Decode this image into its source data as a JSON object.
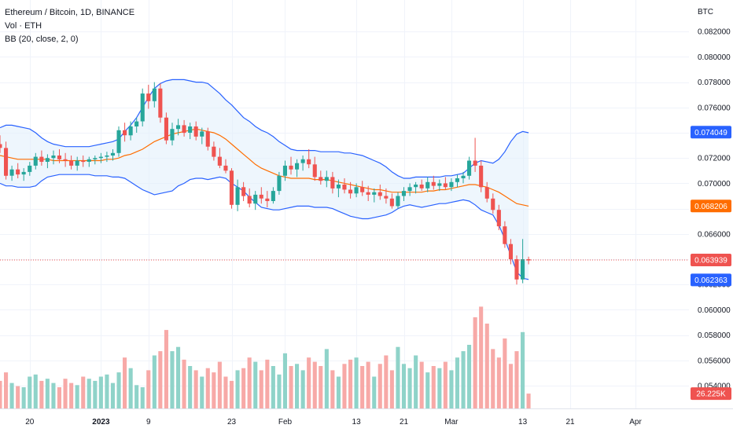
{
  "legend": {
    "symbol_line": "Ethereum / Bitcoin, 1D, BINANCE",
    "volume_line": "Vol · ETH",
    "bb_line": "BB (20, close, 2, 0)"
  },
  "colors": {
    "up": "#26a69a",
    "down": "#ef5350",
    "vol_up": "#8fd3c9",
    "vol_down": "#f7a9a7",
    "bb_band": "#2962ff",
    "bb_basis": "#ff6d00",
    "bb_fill": "#e3f0fc",
    "last_price": "#ef5350",
    "grid": "#f0f3fa"
  },
  "chart_data": {
    "type": "candlestick",
    "pair": "Ethereum / Bitcoin",
    "interval": "1D",
    "exchange": "BINANCE",
    "price_axis": {
      "unit": "BTC",
      "range": [
        0.0522,
        0.0845
      ],
      "ticks": [
        "0.082000",
        "0.080000",
        "0.078000",
        "0.076000",
        "0.074000",
        "0.072000",
        "0.070000",
        "0.068000",
        "0.066000",
        "0.064000",
        "0.062000",
        "0.060000",
        "0.058000",
        "0.056000",
        "0.054000"
      ],
      "tick_values": [
        0.082,
        0.08,
        0.078,
        0.076,
        0.074,
        0.072,
        0.07,
        0.068,
        0.066,
        0.064,
        0.062,
        0.06,
        0.058,
        0.056,
        0.054
      ]
    },
    "time_axis": {
      "range": [
        "2022-12-15",
        "2023-04-10"
      ],
      "ticks": [
        {
          "label": "20",
          "date": "2022-12-20"
        },
        {
          "label": "2023",
          "date": "2023-01-01"
        },
        {
          "label": "9",
          "date": "2023-01-09"
        },
        {
          "label": "23",
          "date": "2023-01-23"
        },
        {
          "label": "Feb",
          "date": "2023-02-01"
        },
        {
          "label": "13",
          "date": "2023-02-13"
        },
        {
          "label": "21",
          "date": "2023-02-21"
        },
        {
          "label": "Mar",
          "date": "2023-03-01"
        },
        {
          "label": "13",
          "date": "2023-03-13"
        },
        {
          "label": "21",
          "date": "2023-03-21"
        },
        {
          "label": "Apr",
          "date": "2023-04-01"
        }
      ]
    },
    "price_labels": [
      {
        "text": "0.074049",
        "value": 0.074049,
        "kind": "bb-upper"
      },
      {
        "text": "0.068206",
        "value": 0.068206,
        "kind": "bb-basis"
      },
      {
        "text": "0.063939",
        "value": 0.063939,
        "kind": "last-price"
      },
      {
        "text": "0.062363",
        "value": 0.062363,
        "kind": "bb-lower"
      }
    ],
    "volume_label": "26.225K",
    "volume_scale_max": 100,
    "last_price": 0.063939,
    "start_date": "2022-12-15",
    "candles": [
      [
        0.0731,
        0.0738,
        0.0724,
        0.0728
      ],
      [
        0.0728,
        0.0733,
        0.0703,
        0.0706
      ],
      [
        0.0706,
        0.0714,
        0.0702,
        0.0711
      ],
      [
        0.0711,
        0.0716,
        0.0704,
        0.0707
      ],
      [
        0.0707,
        0.0712,
        0.0702,
        0.0709
      ],
      [
        0.0709,
        0.0717,
        0.0706,
        0.0714
      ],
      [
        0.0714,
        0.0724,
        0.0711,
        0.0721
      ],
      [
        0.0721,
        0.0726,
        0.0714,
        0.0717
      ],
      [
        0.0717,
        0.0723,
        0.0712,
        0.072
      ],
      [
        0.072,
        0.0726,
        0.0715,
        0.0722
      ],
      [
        0.0722,
        0.0727,
        0.0716,
        0.0719
      ],
      [
        0.0719,
        0.0724,
        0.0713,
        0.0718
      ],
      [
        0.0718,
        0.0722,
        0.0711,
        0.0714
      ],
      [
        0.0714,
        0.0721,
        0.071,
        0.0718
      ],
      [
        0.0718,
        0.0722,
        0.0713,
        0.0717
      ],
      [
        0.0717,
        0.0721,
        0.0713,
        0.0719
      ],
      [
        0.0719,
        0.0722,
        0.0715,
        0.072
      ],
      [
        0.072,
        0.0724,
        0.0716,
        0.0721
      ],
      [
        0.0721,
        0.0725,
        0.0717,
        0.0722
      ],
      [
        0.0722,
        0.0727,
        0.0718,
        0.0724
      ],
      [
        0.0724,
        0.0745,
        0.0721,
        0.0742
      ],
      [
        0.0742,
        0.0748,
        0.0733,
        0.0738
      ],
      [
        0.0738,
        0.0749,
        0.0734,
        0.0745
      ],
      [
        0.0745,
        0.0752,
        0.074,
        0.0749
      ],
      [
        0.0749,
        0.0775,
        0.0745,
        0.0771
      ],
      [
        0.0771,
        0.0778,
        0.0759,
        0.0765
      ],
      [
        0.0765,
        0.078,
        0.076,
        0.0775
      ],
      [
        0.0775,
        0.0779,
        0.0748,
        0.0752
      ],
      [
        0.0752,
        0.0756,
        0.0731,
        0.0734
      ],
      [
        0.0734,
        0.0748,
        0.073,
        0.0743
      ],
      [
        0.0743,
        0.0751,
        0.0738,
        0.0746
      ],
      [
        0.0746,
        0.075,
        0.0737,
        0.074
      ],
      [
        0.074,
        0.0748,
        0.0735,
        0.0745
      ],
      [
        0.0745,
        0.0749,
        0.0734,
        0.0737
      ],
      [
        0.0737,
        0.0744,
        0.0731,
        0.0741
      ],
      [
        0.0741,
        0.0744,
        0.0726,
        0.0729
      ],
      [
        0.0729,
        0.0733,
        0.0718,
        0.0721
      ],
      [
        0.0721,
        0.0728,
        0.0712,
        0.0714
      ],
      [
        0.0714,
        0.0719,
        0.0708,
        0.071
      ],
      [
        0.071,
        0.0712,
        0.068,
        0.0683
      ],
      [
        0.0683,
        0.0703,
        0.0678,
        0.0697
      ],
      [
        0.0697,
        0.0701,
        0.0686,
        0.069
      ],
      [
        0.069,
        0.0696,
        0.0681,
        0.0684
      ],
      [
        0.0684,
        0.0694,
        0.0679,
        0.0691
      ],
      [
        0.0691,
        0.0697,
        0.0684,
        0.0688
      ],
      [
        0.0688,
        0.0694,
        0.0681,
        0.0686
      ],
      [
        0.0686,
        0.0697,
        0.0684,
        0.0694
      ],
      [
        0.0694,
        0.0709,
        0.0691,
        0.0706
      ],
      [
        0.0706,
        0.0718,
        0.0702,
        0.0714
      ],
      [
        0.0714,
        0.0721,
        0.0707,
        0.0711
      ],
      [
        0.0711,
        0.0719,
        0.0705,
        0.0716
      ],
      [
        0.0716,
        0.0722,
        0.071,
        0.0719
      ],
      [
        0.0719,
        0.0727,
        0.0712,
        0.0715
      ],
      [
        0.0715,
        0.0721,
        0.0702,
        0.0705
      ],
      [
        0.0705,
        0.071,
        0.0699,
        0.0702
      ],
      [
        0.0702,
        0.071,
        0.0697,
        0.0705
      ],
      [
        0.0705,
        0.0709,
        0.0692,
        0.0696
      ],
      [
        0.0696,
        0.0703,
        0.0689,
        0.0699
      ],
      [
        0.0699,
        0.0704,
        0.0692,
        0.0695
      ],
      [
        0.0695,
        0.0701,
        0.0688,
        0.0692
      ],
      [
        0.0692,
        0.07,
        0.0689,
        0.0697
      ],
      [
        0.0697,
        0.0702,
        0.069,
        0.0693
      ],
      [
        0.0693,
        0.0698,
        0.0686,
        0.0691
      ],
      [
        0.0691,
        0.0696,
        0.0685,
        0.0693
      ],
      [
        0.0693,
        0.0699,
        0.0687,
        0.069
      ],
      [
        0.069,
        0.0696,
        0.0684,
        0.0688
      ],
      [
        0.0688,
        0.0692,
        0.068,
        0.0682
      ],
      [
        0.0682,
        0.0693,
        0.068,
        0.069
      ],
      [
        0.069,
        0.0697,
        0.0686,
        0.0694
      ],
      [
        0.0694,
        0.07,
        0.069,
        0.0697
      ],
      [
        0.0697,
        0.0701,
        0.0692,
        0.0699
      ],
      [
        0.0699,
        0.0703,
        0.0694,
        0.0696
      ],
      [
        0.0696,
        0.0705,
        0.0693,
        0.0701
      ],
      [
        0.0701,
        0.0706,
        0.0695,
        0.0698
      ],
      [
        0.0698,
        0.0703,
        0.0694,
        0.07
      ],
      [
        0.07,
        0.0705,
        0.0695,
        0.0697
      ],
      [
        0.0697,
        0.0704,
        0.0694,
        0.0701
      ],
      [
        0.0701,
        0.0707,
        0.0697,
        0.0704
      ],
      [
        0.0704,
        0.0709,
        0.07,
        0.0706
      ],
      [
        0.0706,
        0.0721,
        0.0703,
        0.0718
      ],
      [
        0.0718,
        0.0736,
        0.0709,
        0.0714
      ],
      [
        0.0714,
        0.0718,
        0.0693,
        0.0697
      ],
      [
        0.0697,
        0.0701,
        0.0685,
        0.0688
      ],
      [
        0.0688,
        0.0692,
        0.0676,
        0.0679
      ],
      [
        0.0679,
        0.0683,
        0.0663,
        0.0666
      ],
      [
        0.0666,
        0.067,
        0.0649,
        0.0652
      ],
      [
        0.0652,
        0.0656,
        0.0636,
        0.064
      ],
      [
        0.064,
        0.0643,
        0.062,
        0.0624
      ],
      [
        0.0624,
        0.0656,
        0.0621,
        0.064
      ],
      [
        0.064,
        0.0642,
        0.0636,
        0.0639
      ]
    ],
    "volumes": [
      26,
      34,
      24,
      21,
      20,
      30,
      32,
      26,
      28,
      24,
      20,
      28,
      24,
      22,
      30,
      28,
      26,
      30,
      32,
      24,
      34,
      48,
      38,
      22,
      20,
      36,
      50,
      54,
      74,
      54,
      58,
      46,
      40,
      36,
      30,
      38,
      34,
      44,
      30,
      26,
      36,
      38,
      48,
      44,
      36,
      46,
      40,
      32,
      52,
      40,
      42,
      36,
      48,
      44,
      40,
      56,
      36,
      30,
      42,
      46,
      48,
      40,
      44,
      30,
      42,
      50,
      36,
      58,
      42,
      38,
      50,
      44,
      34,
      40,
      38,
      44,
      36,
      48,
      54,
      60,
      86,
      96,
      80,
      56,
      48,
      66,
      42,
      54,
      72,
      14
    ],
    "bollinger": {
      "period": 20,
      "source": "close",
      "mult": 2,
      "basis": [
        0.0722,
        0.0721,
        0.072,
        0.0719,
        0.0719,
        0.0719,
        0.0719,
        0.0719,
        0.0719,
        0.0718,
        0.0718,
        0.0718,
        0.0718,
        0.0718,
        0.0718,
        0.0718,
        0.0718,
        0.0718,
        0.0719,
        0.0719,
        0.072,
        0.0722,
        0.0723,
        0.0725,
        0.0727,
        0.073,
        0.0733,
        0.0735,
        0.0737,
        0.0739,
        0.074,
        0.0741,
        0.0742,
        0.0743,
        0.0742,
        0.0741,
        0.074,
        0.0738,
        0.0735,
        0.0731,
        0.0727,
        0.0723,
        0.0719,
        0.0715,
        0.0712,
        0.071,
        0.0708,
        0.0706,
        0.0705,
        0.0704,
        0.0704,
        0.0704,
        0.0704,
        0.0703,
        0.0703,
        0.0703,
        0.0702,
        0.0701,
        0.07,
        0.0699,
        0.0698,
        0.0697,
        0.0696,
        0.0695,
        0.0695,
        0.0694,
        0.0693,
        0.0693,
        0.0693,
        0.0693,
        0.0693,
        0.0693,
        0.0694,
        0.0694,
        0.0695,
        0.0695,
        0.0696,
        0.0697,
        0.0698,
        0.0699,
        0.0699,
        0.0698,
        0.0697,
        0.0695,
        0.0693,
        0.069,
        0.0687,
        0.0684,
        0.0683,
        0.0682
      ],
      "upper": [
        0.0744,
        0.0746,
        0.0746,
        0.0745,
        0.0744,
        0.0743,
        0.074,
        0.0736,
        0.0733,
        0.0731,
        0.073,
        0.0729,
        0.0729,
        0.0729,
        0.0729,
        0.0729,
        0.073,
        0.0731,
        0.0732,
        0.0733,
        0.0735,
        0.0741,
        0.0746,
        0.0752,
        0.076,
        0.0768,
        0.0775,
        0.0779,
        0.0781,
        0.0782,
        0.0782,
        0.0782,
        0.0781,
        0.078,
        0.078,
        0.0779,
        0.0775,
        0.0771,
        0.0766,
        0.0762,
        0.0757,
        0.0752,
        0.0749,
        0.0745,
        0.0742,
        0.074,
        0.0737,
        0.0733,
        0.073,
        0.0727,
        0.0726,
        0.0726,
        0.0726,
        0.0726,
        0.0725,
        0.0725,
        0.0725,
        0.0725,
        0.0724,
        0.0724,
        0.0723,
        0.0722,
        0.072,
        0.0718,
        0.0716,
        0.0713,
        0.0709,
        0.0706,
        0.0704,
        0.0704,
        0.0705,
        0.0705,
        0.0705,
        0.0705,
        0.0705,
        0.0706,
        0.0706,
        0.0707,
        0.0708,
        0.0712,
        0.0716,
        0.0718,
        0.0717,
        0.0716,
        0.0719,
        0.0725,
        0.0733,
        0.0739,
        0.0741,
        0.074
      ],
      "lower": [
        0.07,
        0.0698,
        0.0698,
        0.0697,
        0.0697,
        0.0697,
        0.0698,
        0.0702,
        0.0705,
        0.0706,
        0.0707,
        0.0707,
        0.0707,
        0.0707,
        0.0707,
        0.0707,
        0.0706,
        0.0706,
        0.0706,
        0.0705,
        0.0705,
        0.0704,
        0.0701,
        0.0698,
        0.0695,
        0.0693,
        0.0691,
        0.0692,
        0.0693,
        0.0694,
        0.0698,
        0.07,
        0.0703,
        0.0704,
        0.0704,
        0.0703,
        0.0704,
        0.0705,
        0.0704,
        0.07,
        0.0697,
        0.0694,
        0.0689,
        0.0685,
        0.0681,
        0.068,
        0.0679,
        0.0679,
        0.068,
        0.0681,
        0.0682,
        0.0682,
        0.0682,
        0.0681,
        0.0681,
        0.0681,
        0.068,
        0.0678,
        0.0676,
        0.0674,
        0.0673,
        0.0672,
        0.0672,
        0.0673,
        0.0674,
        0.0675,
        0.0677,
        0.068,
        0.0682,
        0.0683,
        0.0682,
        0.0681,
        0.0682,
        0.0683,
        0.0684,
        0.0684,
        0.0685,
        0.0686,
        0.0687,
        0.0686,
        0.0683,
        0.0679,
        0.0677,
        0.0675,
        0.0667,
        0.0656,
        0.0643,
        0.063,
        0.0625,
        0.0624
      ]
    }
  }
}
